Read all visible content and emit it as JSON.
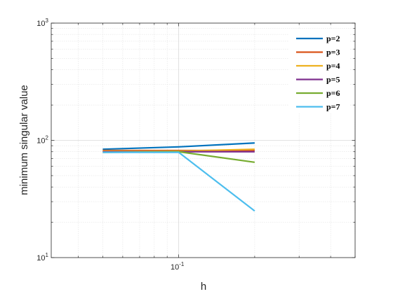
{
  "chart_data": {
    "type": "line",
    "title": "",
    "xlabel": "h",
    "ylabel": "minimum singular value",
    "xscale": "log",
    "yscale": "log",
    "xlim": [
      0.03125,
      0.5
    ],
    "ylim": [
      10,
      1000
    ],
    "grid": true,
    "minor_grid": true,
    "legend_position": "top-right",
    "x_ticks": [
      {
        "value": 0.1,
        "base": "10",
        "exp": "-1"
      }
    ],
    "y_ticks": [
      {
        "value": 10,
        "base": "10",
        "exp": "1"
      },
      {
        "value": 100,
        "base": "10",
        "exp": "2"
      },
      {
        "value": 1000,
        "base": "10",
        "exp": "3"
      }
    ],
    "x": [
      0.05,
      0.1,
      0.2
    ],
    "series": [
      {
        "name": "p=2",
        "color": "#0072BD",
        "values": [
          84,
          88,
          95
        ]
      },
      {
        "name": "p=3",
        "color": "#D95319",
        "values": [
          82,
          82,
          82
        ]
      },
      {
        "name": "p=4",
        "color": "#EDB120",
        "values": [
          81,
          81,
          84
        ]
      },
      {
        "name": "p=5",
        "color": "#7E2F8E",
        "values": [
          80,
          80,
          80
        ]
      },
      {
        "name": "p=6",
        "color": "#77AC30",
        "values": [
          79,
          80,
          65
        ]
      },
      {
        "name": "p=7",
        "color": "#4DBEEE",
        "values": [
          79,
          79,
          25
        ]
      }
    ]
  }
}
